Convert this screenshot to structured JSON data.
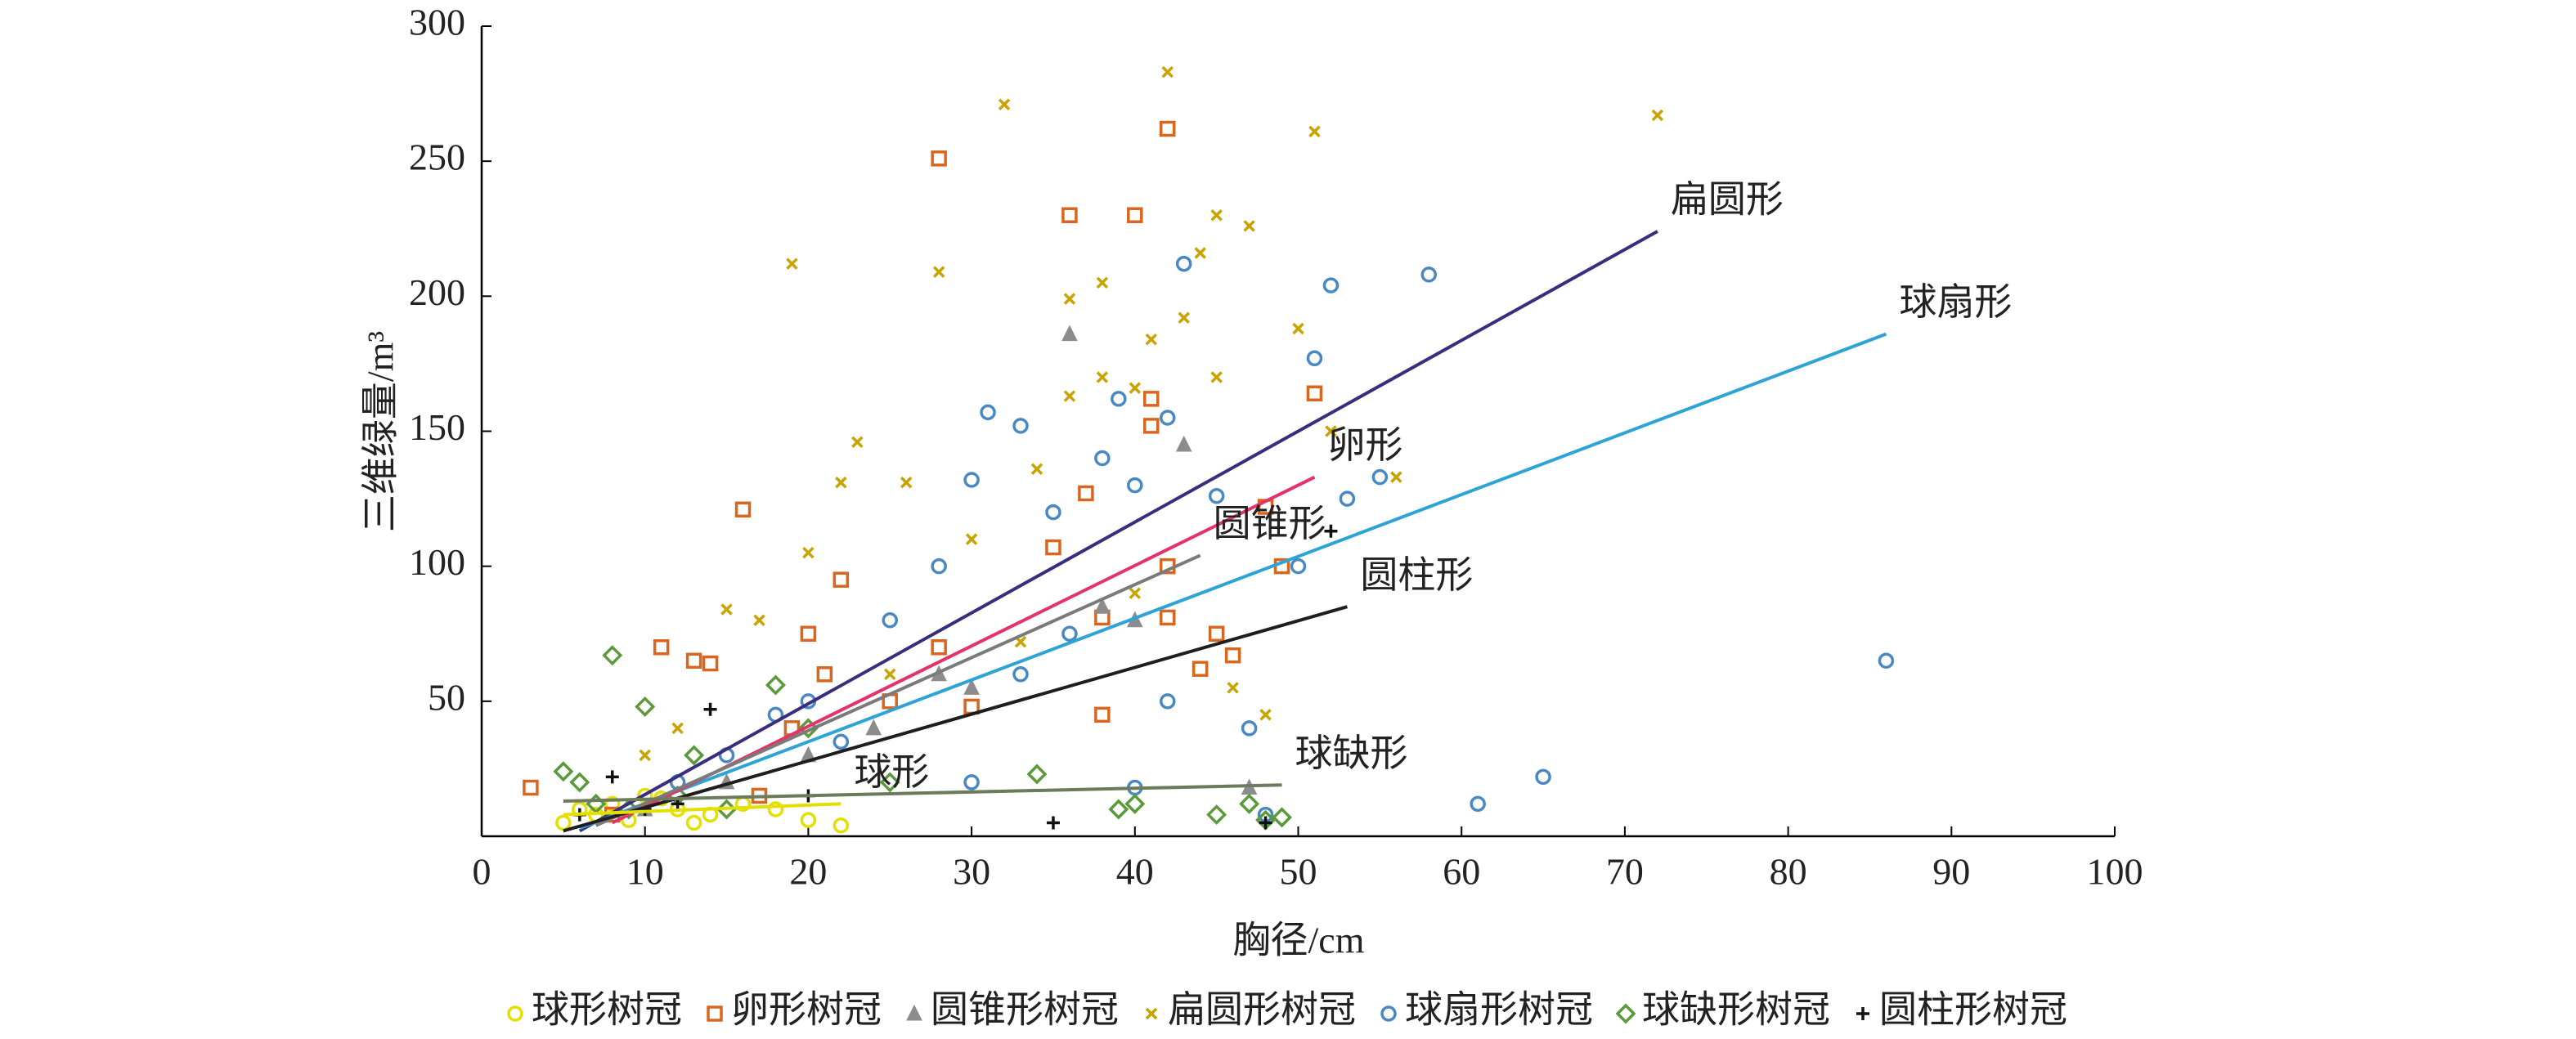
{
  "chart_data": {
    "type": "scatter",
    "x_label": "胸径/cm",
    "y_label": "三维绿量/m³",
    "xlim": [
      0,
      100
    ],
    "xticks": [
      0,
      10,
      20,
      30,
      40,
      50,
      60,
      70,
      80,
      90,
      100
    ],
    "ylim": [
      0,
      300
    ],
    "yticks": [
      50,
      100,
      150,
      200,
      250,
      300
    ],
    "series": [
      {
        "name": "球形树冠",
        "color": "#e3e000",
        "marker": "circle",
        "x": [
          5,
          6,
          7,
          8,
          10,
          12,
          14,
          16,
          18,
          20,
          22,
          9,
          11,
          13
        ],
        "values": [
          5,
          10,
          8,
          12,
          15,
          10,
          8,
          12,
          10,
          6,
          4,
          6,
          14,
          5
        ]
      },
      {
        "name": "卵形树冠",
        "color": "#d9661f",
        "marker": "square",
        "x": [
          3,
          11,
          13,
          14,
          16,
          20,
          21,
          22,
          28,
          28,
          36,
          35,
          37,
          38,
          40,
          41,
          41,
          42,
          42,
          42,
          45,
          46,
          48,
          49,
          51,
          17,
          19,
          8,
          25,
          30,
          38,
          44
        ],
        "values": [
          18,
          70,
          65,
          64,
          121,
          75,
          60,
          95,
          251,
          70,
          230,
          107,
          127,
          81,
          230,
          162,
          152,
          262,
          100,
          81,
          75,
          67,
          122,
          100,
          164,
          15,
          40,
          8,
          50,
          48,
          45,
          62
        ]
      },
      {
        "name": "圆锥形树冠",
        "color": "#8c8c8c",
        "marker": "triangle",
        "x": [
          36,
          43,
          38,
          40,
          24,
          20,
          15,
          30,
          47,
          28,
          10
        ],
        "values": [
          186,
          145,
          85,
          80,
          40,
          30,
          20,
          55,
          18,
          60,
          10
        ]
      },
      {
        "name": "扁圆形树冠",
        "color": "#c9a400",
        "marker": "x",
        "x": [
          19,
          32,
          42,
          51,
          72,
          28,
          36,
          38,
          40,
          45,
          47,
          44,
          43,
          41,
          23,
          26,
          22,
          36,
          50,
          52,
          56,
          15,
          17,
          20,
          30,
          34,
          38,
          45,
          46,
          12,
          10,
          25,
          33,
          40,
          48
        ],
        "values": [
          212,
          271,
          283,
          261,
          267,
          209,
          199,
          205,
          166,
          230,
          226,
          216,
          192,
          184,
          146,
          131,
          131,
          163,
          188,
          150,
          133,
          84,
          80,
          105,
          110,
          136,
          170,
          170,
          55,
          40,
          30,
          60,
          72,
          90,
          45
        ]
      },
      {
        "name": "球扇形树冠",
        "color": "#4a88c2",
        "marker": "circle",
        "x": [
          86,
          65,
          61,
          58,
          52,
          51,
          55,
          53,
          43,
          31,
          33,
          30,
          39,
          40,
          38,
          42,
          35,
          50,
          47,
          45,
          42,
          40,
          28,
          25,
          20,
          18,
          15,
          12,
          33,
          36,
          48,
          30,
          22
        ],
        "values": [
          65,
          22,
          12,
          208,
          204,
          177,
          133,
          125,
          212,
          157,
          152,
          132,
          162,
          130,
          140,
          155,
          120,
          100,
          40,
          126,
          50,
          18,
          100,
          80,
          50,
          45,
          30,
          20,
          60,
          75,
          8,
          20,
          35
        ]
      },
      {
        "name": "球缺形树冠",
        "color": "#5a9a3a",
        "marker": "diamond",
        "x": [
          8,
          10,
          13,
          5,
          6,
          40,
          39,
          45,
          48,
          49,
          18,
          20,
          25,
          34,
          47,
          7,
          9,
          12,
          15
        ],
        "values": [
          67,
          48,
          30,
          24,
          20,
          12,
          10,
          8,
          6,
          7,
          56,
          40,
          20,
          23,
          12,
          12,
          10,
          15,
          10
        ]
      },
      {
        "name": "圆柱形树冠",
        "color": "#111111",
        "marker": "plus",
        "x": [
          8,
          14,
          35,
          48,
          52,
          10,
          20,
          12,
          6
        ],
        "values": [
          22,
          47,
          5,
          5,
          113,
          10,
          15,
          12,
          8
        ]
      }
    ],
    "fit_lines": [
      {
        "label": "扁圆形",
        "color": "#3b2d7e",
        "x": [
          6,
          72
        ],
        "values": [
          2,
          224
        ]
      },
      {
        "label": "球扇形",
        "color": "#2ea3d8",
        "x": [
          6,
          86
        ],
        "values": [
          3,
          186
        ]
      },
      {
        "label": "卵形",
        "color": "#e3336a",
        "x": [
          8,
          51
        ],
        "values": [
          5,
          133
        ]
      },
      {
        "label": "圆锥形",
        "color": "#7a7a7a",
        "x": [
          7,
          44
        ],
        "values": [
          4,
          104
        ]
      },
      {
        "label": "圆柱形",
        "color": "#1e1e1e",
        "x": [
          5,
          53
        ],
        "values": [
          2,
          85
        ]
      },
      {
        "label": "球缺形",
        "color": "#6b7b5b",
        "x": [
          5,
          49
        ],
        "values": [
          13,
          19
        ]
      },
      {
        "label": "球形",
        "color": "#e3e000",
        "x": [
          5,
          22
        ],
        "values": [
          8,
          12
        ]
      }
    ]
  }
}
